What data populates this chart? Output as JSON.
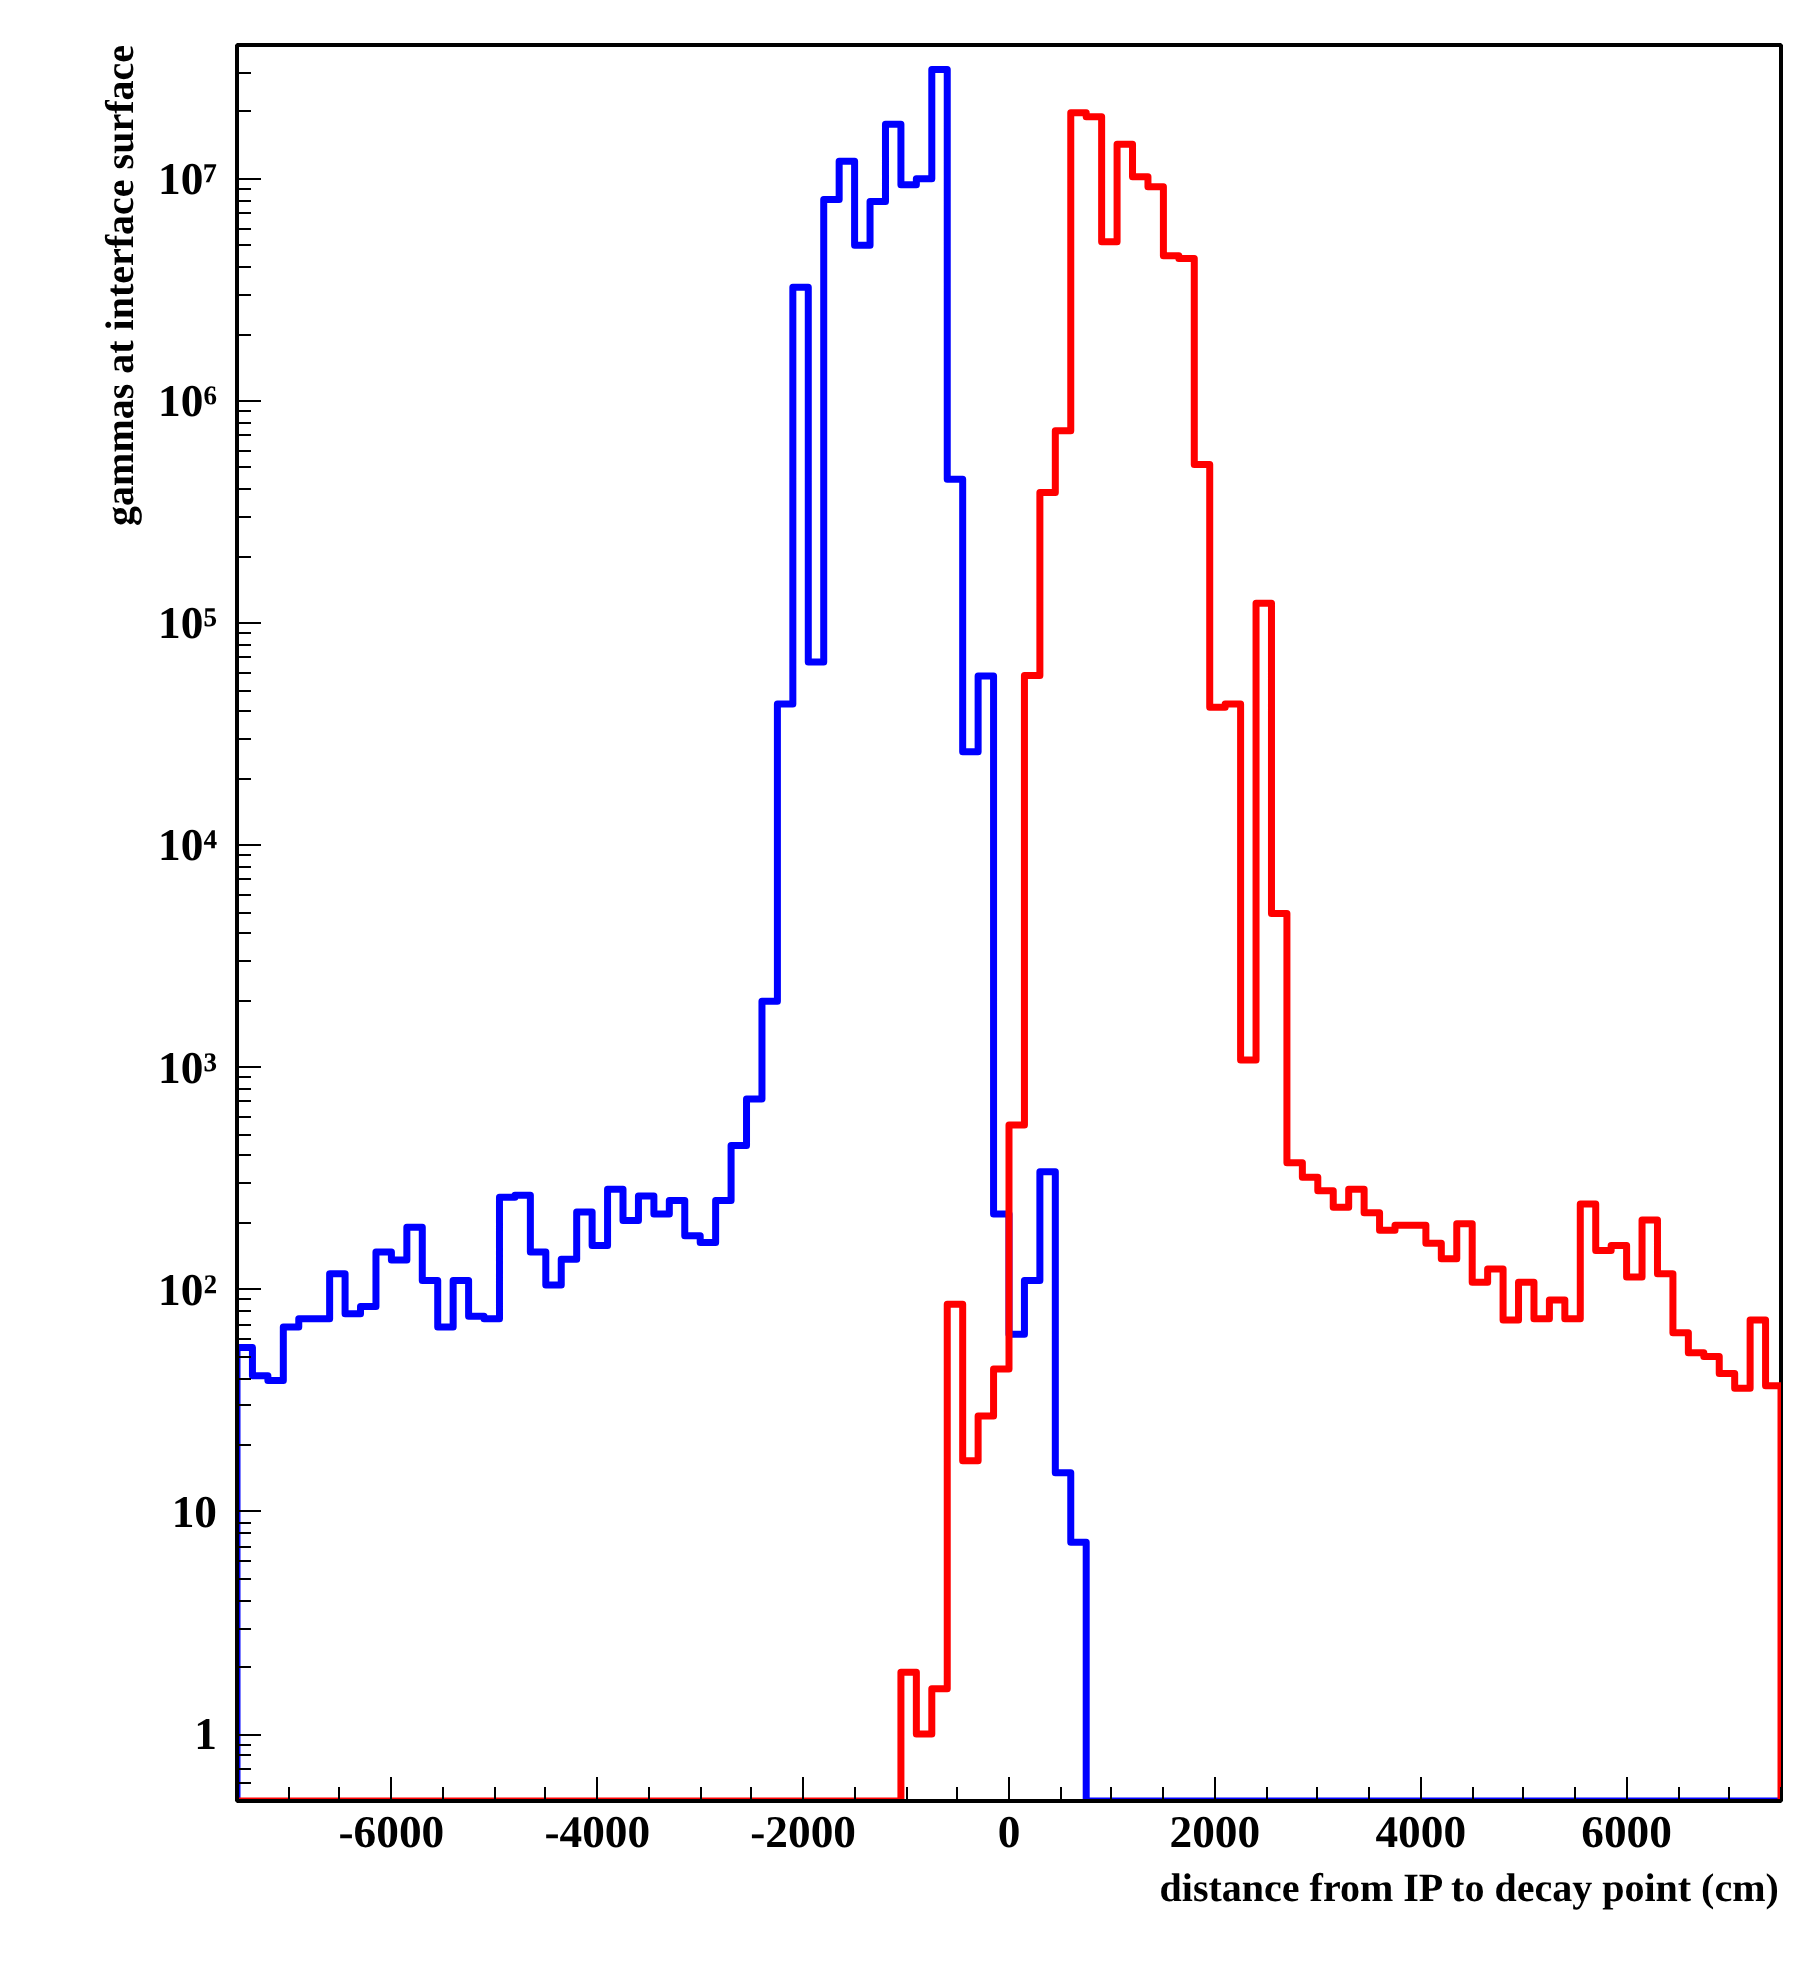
{
  "chart_data": {
    "type": "histogram",
    "xlabel": "distance from IP to decay point (cm)",
    "ylabel": "gammas at interface surface",
    "bins": [
      -7500,
      -7350,
      -7200,
      -7050,
      -6900,
      -6750,
      -6600,
      -6450,
      -6300,
      -6150,
      -6000,
      -5850,
      -5700,
      -5550,
      -5400,
      -5250,
      -5100,
      -4950,
      -4800,
      -4650,
      -4500,
      -4350,
      -4200,
      -4050,
      -3900,
      -3750,
      -3600,
      -3450,
      -3300,
      -3150,
      -3000,
      -2850,
      -2700,
      -2550,
      -2400,
      -2250,
      -2100,
      -1950,
      -1800,
      -1650,
      -1500,
      -1350,
      -1200,
      -1050,
      -900,
      -750,
      -600,
      -450,
      -300,
      -150,
      0,
      150,
      300,
      450,
      600,
      750,
      900,
      1050,
      1200,
      1350,
      1500,
      1650,
      1800,
      1950,
      2100,
      2250,
      2400,
      2550,
      2700,
      2850,
      3000,
      3150,
      3300,
      3450,
      3600,
      3750,
      3900,
      4050,
      4200,
      4350,
      4500,
      4650,
      4800,
      4950,
      5100,
      5250,
      5400,
      5550,
      5700,
      5850,
      6000,
      6150,
      6300,
      6450,
      6600,
      6750,
      6900,
      7050,
      7200,
      7350,
      7500
    ],
    "series": [
      {
        "color": "#0000ff",
        "values": [
          55,
          41,
          39,
          68,
          74,
          74,
          118,
          78,
          84,
          148,
          136,
          191,
          110,
          68,
          110,
          76,
          74,
          261,
          266,
          148,
          105,
          137,
          224,
          158,
          283,
          205,
          264,
          219,
          252,
          175,
          163,
          252,
          446,
          722,
          1990,
          43300,
          3250000,
          66800,
          8070000,
          12000000,
          5020000,
          7900000,
          17600000,
          9400000,
          10000000,
          31000000,
          444000,
          26400,
          57800,
          219,
          63,
          110,
          340,
          15,
          7.3,
          null,
          null,
          null,
          null,
          null,
          null,
          null,
          null,
          null,
          null,
          null,
          null,
          null,
          null,
          null,
          null,
          null,
          null,
          null,
          null,
          null,
          null,
          null,
          null,
          null,
          null,
          null,
          null,
          null,
          null,
          null,
          null,
          null,
          null,
          null,
          null,
          null,
          null,
          null,
          null,
          null,
          null,
          null,
          null,
          null
        ]
      },
      {
        "color": "#ff0000",
        "values": [
          null,
          null,
          null,
          null,
          null,
          null,
          null,
          null,
          null,
          null,
          null,
          null,
          null,
          null,
          null,
          null,
          null,
          null,
          null,
          null,
          null,
          null,
          null,
          null,
          null,
          null,
          null,
          null,
          null,
          null,
          null,
          null,
          null,
          null,
          null,
          null,
          null,
          null,
          null,
          null,
          null,
          null,
          null,
          1.9,
          1,
          1.6,
          86,
          17,
          27,
          44,
          552,
          58200,
          387000,
          735000,
          19800000,
          19000000,
          5200000,
          14300000,
          10200000,
          9200000,
          4500000,
          4380000,
          518000,
          41800,
          43300,
          1080,
          123000,
          4940,
          373,
          321,
          279,
          235,
          283,
          222,
          185,
          195,
          195,
          162,
          138,
          198,
          108,
          124,
          73,
          108,
          74,
          90,
          74,
          243,
          150,
          158,
          114,
          206,
          118,
          64,
          52,
          50,
          42,
          36,
          73,
          37
        ]
      }
    ],
    "log": "y",
    "xlim": [
      -7500,
      7500
    ],
    "xticks": [
      -6000,
      -4000,
      -2000,
      0,
      2000,
      4000,
      6000
    ],
    "ylim": [
      0.5,
      40000000
    ],
    "yticks": [
      1,
      10,
      {
        "value": 100,
        "label": "10²"
      },
      {
        "value": 1000,
        "label": "10³"
      },
      {
        "value": 10000,
        "label": "10⁴"
      },
      {
        "value": 100000,
        "label": "10⁵"
      },
      {
        "value": 1000000,
        "label": "10⁶"
      },
      {
        "value": 10000000,
        "label": "10⁷"
      }
    ],
    "grid": false,
    "line_style": "solid"
  }
}
